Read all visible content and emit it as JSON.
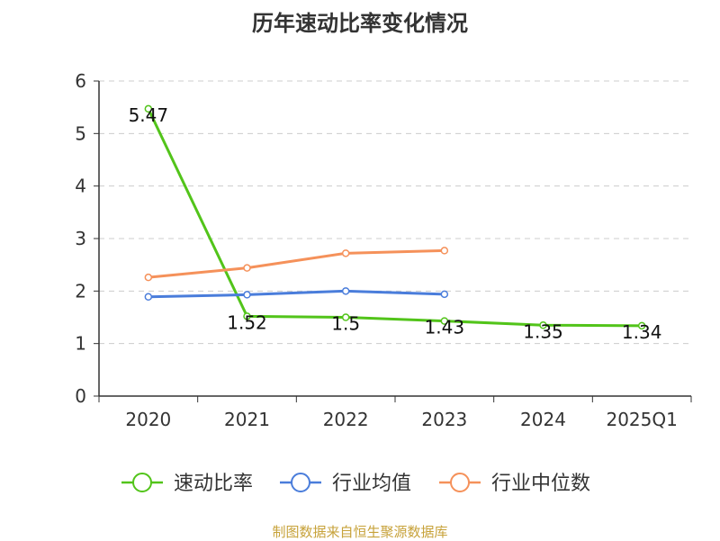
{
  "title": "历年速动比率变化情况",
  "source": "制图数据来自恒生聚源数据库",
  "chart_data": {
    "type": "line",
    "categories": [
      "2020",
      "2021",
      "2022",
      "2023",
      "2024",
      "2025Q1"
    ],
    "ylim": [
      0,
      6
    ],
    "yticks": [
      "0",
      "1",
      "2",
      "3",
      "4",
      "5",
      "6"
    ],
    "grid": true,
    "legend_position": "bottom",
    "series": [
      {
        "name": "速动比率",
        "color": "#52c41a",
        "values": [
          5.47,
          1.52,
          1.5,
          1.43,
          1.35,
          1.34
        ],
        "labels": [
          "5.47",
          "1.52",
          "1.5",
          "1.43",
          "1.35",
          "1.34"
        ]
      },
      {
        "name": "行业均值",
        "color": "#4a7ddb",
        "values": [
          1.89,
          1.93,
          2.0,
          1.94,
          null,
          null
        ]
      },
      {
        "name": "行业中位数",
        "color": "#f5915a",
        "values": [
          2.26,
          2.44,
          2.72,
          2.77,
          null,
          null
        ]
      }
    ]
  }
}
